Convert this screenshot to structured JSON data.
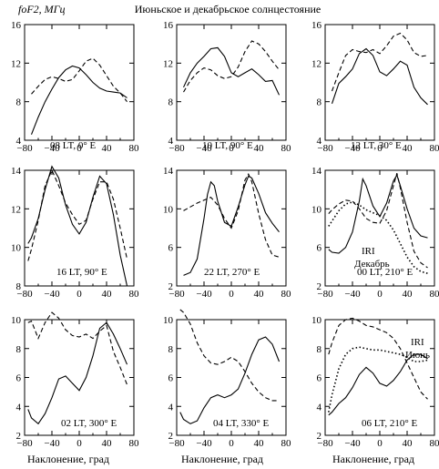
{
  "figure": {
    "title": "Июньское и декабрьское солнцестояние",
    "ylabel": "foF2, МГц",
    "xlabel": "Наклонение, град"
  },
  "chart_data": [
    {
      "type": "line",
      "label": "08 LT, 0° E",
      "xlim": [
        -80,
        80
      ],
      "ylim": [
        4,
        16
      ],
      "xticks": [
        -80,
        -40,
        0,
        40,
        80
      ],
      "yticks": [
        4,
        8,
        12,
        16
      ],
      "series": [
        {
          "style": "solid",
          "x": [
            -70,
            -60,
            -50,
            -40,
            -30,
            -20,
            -10,
            0,
            10,
            20,
            30,
            40,
            50,
            60,
            70
          ],
          "y": [
            4.6,
            6.4,
            8.0,
            9.3,
            10.5,
            11.3,
            11.7,
            11.5,
            10.8,
            10.0,
            9.4,
            9.1,
            9.0,
            8.9,
            8.4
          ]
        },
        {
          "style": "dashed",
          "x": [
            -70,
            -60,
            -50,
            -40,
            -30,
            -20,
            -10,
            0,
            10,
            20,
            30,
            40,
            50,
            60,
            70
          ],
          "y": [
            8.8,
            9.6,
            10.3,
            10.6,
            10.4,
            10.1,
            10.3,
            11.2,
            12.2,
            12.5,
            11.8,
            10.7,
            9.6,
            8.9,
            8.0
          ]
        }
      ]
    },
    {
      "type": "line",
      "label": "10 LT, 90° E",
      "xlim": [
        -80,
        80
      ],
      "ylim": [
        4,
        16
      ],
      "xticks": [
        -80,
        -40,
        0,
        40,
        80
      ],
      "yticks": [
        4,
        8,
        12,
        16
      ],
      "series": [
        {
          "style": "solid",
          "x": [
            -70,
            -60,
            -50,
            -40,
            -30,
            -20,
            -10,
            0,
            10,
            20,
            30,
            40,
            50,
            60,
            70
          ],
          "y": [
            9.5,
            11.0,
            12.0,
            12.7,
            13.5,
            13.6,
            12.7,
            11.0,
            10.6,
            11.0,
            11.4,
            10.8,
            10.1,
            10.2,
            8.7
          ]
        },
        {
          "style": "dashed",
          "x": [
            -70,
            -60,
            -50,
            -40,
            -30,
            -20,
            -10,
            0,
            10,
            20,
            30,
            40,
            50,
            60,
            70
          ],
          "y": [
            9.0,
            10.2,
            11.0,
            11.5,
            11.3,
            10.7,
            10.4,
            10.6,
            11.6,
            13.2,
            14.3,
            14.0,
            13.2,
            12.2,
            11.3
          ]
        }
      ]
    },
    {
      "type": "line",
      "label": "12 LT, 30° E",
      "xlim": [
        -80,
        80
      ],
      "ylim": [
        4,
        16
      ],
      "xticks": [
        -80,
        -40,
        0,
        40,
        80
      ],
      "yticks": [
        4,
        8,
        12,
        16
      ],
      "series": [
        {
          "style": "solid",
          "x": [
            -70,
            -60,
            -50,
            -40,
            -30,
            -20,
            -10,
            0,
            10,
            20,
            30,
            40,
            50,
            60,
            70
          ],
          "y": [
            7.8,
            9.9,
            10.6,
            11.4,
            13.0,
            13.5,
            12.8,
            11.1,
            10.7,
            11.4,
            12.2,
            11.8,
            9.5,
            8.4,
            7.7
          ]
        },
        {
          "style": "dashed",
          "x": [
            -70,
            -60,
            -50,
            -40,
            -30,
            -20,
            -10,
            0,
            10,
            20,
            30,
            40,
            50,
            60,
            70
          ],
          "y": [
            9.1,
            11.0,
            12.8,
            13.4,
            13.2,
            13.1,
            13.4,
            13.0,
            13.8,
            14.8,
            15.1,
            14.4,
            13.1,
            12.7,
            12.8
          ]
        }
      ]
    },
    {
      "type": "line",
      "label": "16 LT, 90° E",
      "xlim": [
        -80,
        80
      ],
      "ylim": [
        8,
        14
      ],
      "xticks": [
        -80,
        -40,
        0,
        40,
        80
      ],
      "yticks": [
        8,
        10,
        12,
        14
      ],
      "series": [
        {
          "style": "solid",
          "x": [
            -75,
            -70,
            -60,
            -50,
            -40,
            -30,
            -20,
            -10,
            0,
            10,
            20,
            30,
            40,
            50,
            60,
            70
          ],
          "y": [
            10.2,
            10.5,
            11.5,
            13.0,
            14.2,
            13.6,
            12.2,
            11.2,
            10.7,
            11.3,
            12.6,
            13.7,
            13.3,
            11.7,
            9.6,
            8.0
          ]
        },
        {
          "style": "dashed",
          "x": [
            -75,
            -70,
            -60,
            -50,
            -40,
            -30,
            -20,
            -10,
            0,
            10,
            20,
            30,
            40,
            50,
            60,
            70
          ],
          "y": [
            9.3,
            9.9,
            11.4,
            13.2,
            14.0,
            13.2,
            12.3,
            11.7,
            11.2,
            11.4,
            12.5,
            13.4,
            13.4,
            12.5,
            11.0,
            9.4
          ]
        }
      ]
    },
    {
      "type": "line",
      "label": "22 LT, 270° E",
      "xlim": [
        -80,
        80
      ],
      "ylim": [
        2,
        14
      ],
      "xticks": [
        -80,
        -40,
        0,
        40,
        80
      ],
      "yticks": [
        2,
        6,
        10,
        14
      ],
      "series": [
        {
          "style": "solid",
          "x": [
            -70,
            -60,
            -50,
            -40,
            -35,
            -30,
            -25,
            -20,
            -10,
            0,
            10,
            20,
            25,
            30,
            40,
            50,
            60,
            70
          ],
          "y": [
            3.1,
            3.4,
            4.8,
            9.0,
            11.5,
            12.8,
            12.4,
            10.8,
            8.6,
            8.2,
            10.2,
            12.5,
            13.4,
            13.2,
            11.6,
            9.6,
            8.5,
            7.6
          ]
        },
        {
          "style": "dashed",
          "x": [
            -70,
            -60,
            -50,
            -40,
            -30,
            -20,
            -10,
            0,
            10,
            20,
            25,
            30,
            40,
            50,
            60,
            70
          ],
          "y": [
            9.8,
            10.2,
            10.6,
            10.9,
            11.2,
            10.4,
            9.0,
            8.0,
            9.8,
            13.0,
            13.6,
            12.8,
            9.5,
            6.8,
            5.2,
            5.0
          ]
        }
      ]
    },
    {
      "type": "line",
      "label": "00 LT, 210° E",
      "xlim": [
        -80,
        80
      ],
      "ylim": [
        2,
        14
      ],
      "xticks": [
        -80,
        -40,
        0,
        40,
        80
      ],
      "yticks": [
        2,
        6,
        10,
        14
      ],
      "annotations": [
        "IRI",
        "Декабрь"
      ],
      "series": [
        {
          "style": "solid",
          "x": [
            -75,
            -70,
            -60,
            -50,
            -40,
            -30,
            -25,
            -20,
            -10,
            0,
            10,
            20,
            25,
            30,
            40,
            50,
            60,
            70
          ],
          "y": [
            5.8,
            5.5,
            5.4,
            6.0,
            7.6,
            10.8,
            13.1,
            12.4,
            10.3,
            9.2,
            10.6,
            12.9,
            13.5,
            12.4,
            10.0,
            8.0,
            7.2,
            7.0
          ]
        },
        {
          "style": "dashed",
          "x": [
            -75,
            -70,
            -60,
            -50,
            -40,
            -30,
            -20,
            -10,
            0,
            10,
            20,
            25,
            30,
            40,
            50,
            60,
            70
          ],
          "y": [
            9.5,
            9.9,
            10.5,
            10.9,
            10.8,
            10.0,
            9.0,
            8.6,
            8.5,
            9.8,
            12.4,
            13.7,
            12.2,
            8.6,
            5.6,
            4.4,
            3.9
          ]
        },
        {
          "style": "dotted",
          "x": [
            -75,
            -60,
            -50,
            -40,
            -30,
            -20,
            -10,
            0,
            10,
            20,
            30,
            40,
            50,
            60,
            70
          ],
          "y": [
            8.2,
            9.8,
            10.5,
            10.7,
            10.4,
            9.9,
            9.6,
            9.3,
            8.8,
            7.8,
            6.4,
            5.0,
            4.0,
            3.5,
            3.3
          ]
        }
      ]
    },
    {
      "type": "line",
      "label": "02 LT, 300° E",
      "xlim": [
        -80,
        80
      ],
      "ylim": [
        2,
        10
      ],
      "xticks": [
        -80,
        -40,
        0,
        40,
        80
      ],
      "yticks": [
        2,
        4,
        6,
        8,
        10
      ],
      "series": [
        {
          "style": "solid",
          "x": [
            -75,
            -70,
            -60,
            -50,
            -40,
            -30,
            -20,
            -10,
            0,
            10,
            20,
            30,
            40,
            50,
            60,
            70
          ],
          "y": [
            3.8,
            3.2,
            2.8,
            3.5,
            4.6,
            5.9,
            6.1,
            5.6,
            5.1,
            6.0,
            7.5,
            9.4,
            9.8,
            9.0,
            8.0,
            6.9
          ]
        },
        {
          "style": "dashed",
          "x": [
            -75,
            -70,
            -60,
            -50,
            -40,
            -30,
            -20,
            -10,
            0,
            10,
            20,
            30,
            40,
            50,
            60,
            70
          ],
          "y": [
            9.8,
            9.9,
            8.7,
            9.8,
            10.5,
            10.1,
            9.3,
            8.9,
            8.8,
            9.0,
            8.7,
            9.2,
            9.6,
            7.8,
            6.7,
            5.5
          ]
        }
      ]
    },
    {
      "type": "line",
      "label": "04 LT, 330° E",
      "xlim": [
        -80,
        80
      ],
      "ylim": [
        2,
        10
      ],
      "xticks": [
        -80,
        -40,
        0,
        40,
        80
      ],
      "yticks": [
        2,
        4,
        6,
        8,
        10
      ],
      "series": [
        {
          "style": "solid",
          "x": [
            -75,
            -70,
            -60,
            -50,
            -40,
            -30,
            -20,
            -10,
            0,
            10,
            20,
            30,
            40,
            50,
            60,
            70
          ],
          "y": [
            3.6,
            3.1,
            2.8,
            3.0,
            3.9,
            4.6,
            4.8,
            4.6,
            4.8,
            5.2,
            6.3,
            7.6,
            8.6,
            8.8,
            8.3,
            7.1
          ]
        },
        {
          "style": "dashed",
          "x": [
            -75,
            -70,
            -60,
            -50,
            -40,
            -30,
            -20,
            -10,
            0,
            10,
            20,
            30,
            40,
            50,
            60,
            70
          ],
          "y": [
            10.7,
            10.5,
            9.7,
            8.4,
            7.5,
            7.0,
            6.9,
            7.1,
            7.4,
            7.1,
            6.4,
            5.6,
            5.0,
            4.6,
            4.4,
            4.4
          ]
        }
      ]
    },
    {
      "type": "line",
      "label": "06 LT, 210° E",
      "xlim": [
        -80,
        80
      ],
      "ylim": [
        2,
        10
      ],
      "xticks": [
        -80,
        -40,
        0,
        40,
        80
      ],
      "yticks": [
        2,
        4,
        6,
        8,
        10
      ],
      "annotations": [
        "IRI",
        "Июнь"
      ],
      "series": [
        {
          "style": "solid",
          "x": [
            -75,
            -70,
            -60,
            -50,
            -40,
            -30,
            -20,
            -10,
            0,
            10,
            20,
            30,
            40,
            50,
            60,
            70
          ],
          "y": [
            3.4,
            3.6,
            4.2,
            4.6,
            5.3,
            6.2,
            6.7,
            6.3,
            5.6,
            5.4,
            5.8,
            6.4,
            7.2,
            7.6,
            7.6,
            7.3
          ]
        },
        {
          "style": "dashed",
          "x": [
            -75,
            -70,
            -60,
            -50,
            -40,
            -30,
            -20,
            -10,
            0,
            10,
            20,
            30,
            40,
            50,
            60,
            70
          ],
          "y": [
            7.6,
            8.4,
            9.6,
            10.0,
            10.1,
            9.9,
            9.6,
            9.5,
            9.3,
            9.1,
            8.7,
            8.0,
            7.0,
            6.0,
            5.0,
            4.5
          ]
        },
        {
          "style": "dotted",
          "x": [
            -75,
            -70,
            -60,
            -50,
            -40,
            -30,
            -20,
            -10,
            0,
            10,
            20,
            30,
            40,
            50,
            60,
            70
          ],
          "y": [
            3.6,
            4.8,
            6.6,
            7.6,
            8.0,
            8.1,
            8.0,
            7.9,
            7.9,
            7.8,
            7.7,
            7.6,
            7.4,
            7.1,
            7.1,
            7.2
          ]
        }
      ]
    }
  ]
}
